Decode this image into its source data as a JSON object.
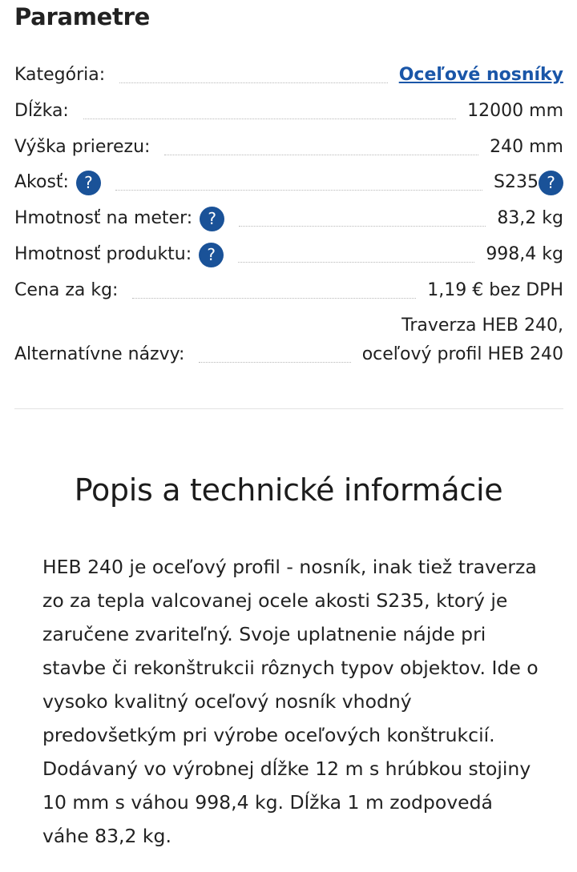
{
  "parameters": {
    "title": "Parametre",
    "rows": [
      {
        "label": "Kategória:",
        "value": "Oceľové nosníky"
      },
      {
        "label": "Dĺžka:",
        "value": "12000 mm"
      },
      {
        "label": "Výška prierezu:",
        "value": "240 mm"
      },
      {
        "label": "Akosť:",
        "value": "S235"
      },
      {
        "label": "Hmotnosť na meter:",
        "value": "83,2 kg"
      },
      {
        "label": "Hmotnosť produktu:",
        "value": "998,4 kg"
      },
      {
        "label": "Cena za kg:",
        "value": "1,19 € bez DPH"
      },
      {
        "label": "Alternatívne názvy:",
        "value_lines": [
          "Traverza HEB 240,",
          "oceľový profil HEB 240"
        ]
      }
    ],
    "help_glyph": "?",
    "help_color": "#1a5298",
    "link_color": "#1a56a8"
  },
  "description": {
    "title": "Popis a technické informácie",
    "text": "HEB 240 je oceľový profil - nosník, inak tiež traverza zo za tepla valcovanej ocele akosti S235, ktorý je zaručene zvariteľný. Svoje uplatnenie nájde pri stavbe či rekonštrukcii rôznych typov objektov. Ide o vysoko kvalitný oceľový nosník vhodný predovšetkým pri výrobe oceľových konštrukcií. Dodávaný vo výrobnej dĺžke 12 m s hrúbkou stojiny 10 mm s váhou 998,4 kg. Dĺžka 1 m zodpovedá váhe 83,2 kg."
  }
}
